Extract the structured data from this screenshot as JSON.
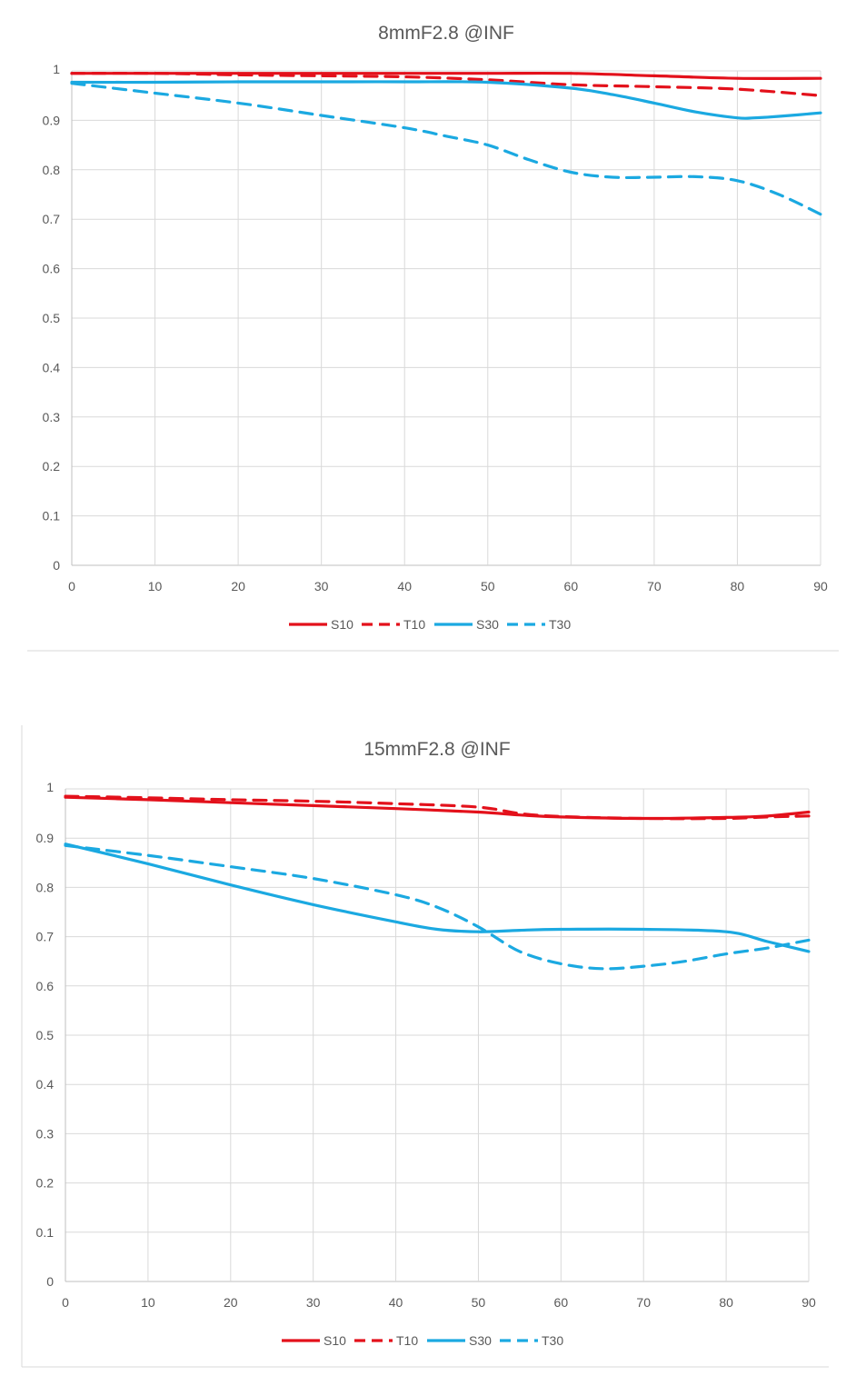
{
  "chart_data": [
    {
      "type": "line",
      "title": "8mmF2.8 @INF",
      "xlabel": "",
      "ylabel": "",
      "xlim": [
        0,
        90
      ],
      "ylim": [
        0,
        1
      ],
      "x_ticks": [
        "0",
        "10",
        "20",
        "30",
        "40",
        "50",
        "60",
        "70",
        "80",
        "90"
      ],
      "y_ticks": [
        "0",
        "0.1",
        "0.2",
        "0.3",
        "0.4",
        "0.5",
        "0.6",
        "0.7",
        "0.8",
        "0.9",
        "1"
      ],
      "legend_position": "bottom",
      "grid": true,
      "series": [
        {
          "name": "S10",
          "color": "#e3111b",
          "dash": "solid",
          "x": [
            0,
            10,
            20,
            30,
            40,
            50,
            60,
            70,
            80,
            90
          ],
          "y": [
            0.995,
            0.995,
            0.995,
            0.995,
            0.995,
            0.995,
            0.995,
            0.99,
            0.985,
            0.985
          ]
        },
        {
          "name": "T10",
          "color": "#e3111b",
          "dash": "dashed",
          "x": [
            0,
            10,
            20,
            30,
            40,
            50,
            60,
            70,
            80,
            90
          ],
          "y": [
            0.995,
            0.995,
            0.992,
            0.99,
            0.988,
            0.982,
            0.972,
            0.968,
            0.963,
            0.95
          ]
        },
        {
          "name": "S30",
          "color": "#1ba9e1",
          "dash": "solid",
          "x": [
            0,
            10,
            20,
            30,
            40,
            50,
            60,
            65,
            70,
            75,
            80,
            82,
            85,
            90
          ],
          "y": [
            0.977,
            0.977,
            0.978,
            0.978,
            0.978,
            0.977,
            0.965,
            0.952,
            0.935,
            0.917,
            0.905,
            0.905,
            0.908,
            0.915
          ]
        },
        {
          "name": "T30",
          "color": "#1ba9e1",
          "dash": "dashed",
          "x": [
            0,
            10,
            20,
            30,
            40,
            45,
            50,
            55,
            60,
            65,
            70,
            75,
            80,
            85,
            90
          ],
          "y": [
            0.975,
            0.955,
            0.935,
            0.91,
            0.885,
            0.868,
            0.85,
            0.82,
            0.795,
            0.785,
            0.785,
            0.786,
            0.778,
            0.75,
            0.71
          ]
        }
      ]
    },
    {
      "type": "line",
      "title": "15mmF2.8 @INF",
      "xlabel": "",
      "ylabel": "",
      "xlim": [
        0,
        90
      ],
      "ylim": [
        0,
        1
      ],
      "x_ticks": [
        "0",
        "10",
        "20",
        "30",
        "40",
        "50",
        "60",
        "70",
        "80",
        "90"
      ],
      "y_ticks": [
        "0",
        "0.1",
        "0.2",
        "0.3",
        "0.4",
        "0.5",
        "0.6",
        "0.7",
        "0.8",
        "0.9",
        "1"
      ],
      "legend_position": "bottom",
      "grid": true,
      "series": [
        {
          "name": "S10",
          "color": "#e3111b",
          "dash": "solid",
          "x": [
            0,
            10,
            20,
            30,
            40,
            50,
            55,
            60,
            70,
            80,
            85,
            90
          ],
          "y": [
            0.983,
            0.978,
            0.972,
            0.966,
            0.96,
            0.953,
            0.947,
            0.943,
            0.94,
            0.942,
            0.945,
            0.953
          ]
        },
        {
          "name": "T10",
          "color": "#e3111b",
          "dash": "dashed",
          "x": [
            0,
            10,
            20,
            30,
            40,
            50,
            55,
            60,
            70,
            80,
            85,
            90
          ],
          "y": [
            0.985,
            0.982,
            0.978,
            0.975,
            0.97,
            0.963,
            0.95,
            0.944,
            0.94,
            0.94,
            0.943,
            0.945
          ]
        },
        {
          "name": "S30",
          "color": "#1ba9e1",
          "dash": "solid",
          "x": [
            0,
            10,
            20,
            30,
            40,
            45,
            50,
            55,
            60,
            70,
            80,
            85,
            90
          ],
          "y": [
            0.888,
            0.848,
            0.805,
            0.765,
            0.73,
            0.715,
            0.71,
            0.713,
            0.715,
            0.715,
            0.71,
            0.69,
            0.67
          ]
        },
        {
          "name": "T30",
          "color": "#1ba9e1",
          "dash": "dashed",
          "x": [
            0,
            10,
            20,
            30,
            40,
            45,
            50,
            55,
            60,
            65,
            70,
            75,
            80,
            85,
            90
          ],
          "y": [
            0.885,
            0.865,
            0.842,
            0.818,
            0.785,
            0.76,
            0.72,
            0.67,
            0.645,
            0.635,
            0.64,
            0.65,
            0.665,
            0.677,
            0.693
          ]
        }
      ]
    }
  ]
}
